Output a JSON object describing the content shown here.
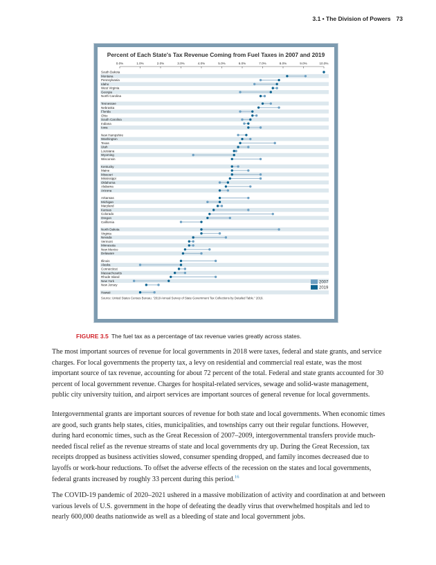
{
  "header": {
    "section": "3.1 • The Division of Powers",
    "page_number": "73"
  },
  "figure": {
    "caption_label": "FIGURE 3.5",
    "caption_text": "The fuel tax as a percentage of tax revenue varies greatly across states."
  },
  "colors": {
    "y2007": "#6c9fc2",
    "y2019": "#0d6390",
    "band": "#dde8ee",
    "connector": "#9fbcd1"
  },
  "chart_data": {
    "type": "dot_plot",
    "title": "Percent of Each State's Tax Revenue Coming from Fuel Taxes in 2007 and 2019",
    "x_ticks": [
      "0.0%",
      "1.0%",
      "2.0%",
      "3.0%",
      "4.0%",
      "5.0%",
      "6.0%",
      "7.0%",
      "8.0%",
      "9.0%",
      "10.0%"
    ],
    "xlim": [
      0,
      10
    ],
    "legend": {
      "entries": [
        "2007",
        "2019"
      ],
      "placement": "bottom-right"
    },
    "source": "Source: United States Census Bureau. \"2019 Annual Survey of State Government Tax Collections by Detailed Table.\" 2019.",
    "states": [
      {
        "name": "South Dakota",
        "v2007": 10.0,
        "v2019": 10.0
      },
      {
        "name": "Montana",
        "v2007": 9.1,
        "v2019": 8.2
      },
      {
        "name": "Pennsylvania",
        "v2007": 6.9,
        "v2019": 7.8
      },
      {
        "name": "Idaho",
        "v2007": 6.6,
        "v2019": 7.7
      },
      {
        "name": "West Virginia",
        "v2007": 7.7,
        "v2019": 7.5
      },
      {
        "name": "Georgia",
        "v2007": 5.9,
        "v2019": 7.4
      },
      {
        "name": "North Carolina",
        "v2007": 7.1,
        "v2019": 6.9
      },
      {
        "name": "Tennessee",
        "v2007": 7.4,
        "v2019": 7.0
      },
      {
        "name": "Nebraska",
        "v2007": 7.8,
        "v2019": 6.8
      },
      {
        "name": "Florida",
        "v2007": 5.9,
        "v2019": 6.5
      },
      {
        "name": "Ohio",
        "v2007": 6.7,
        "v2019": 6.5
      },
      {
        "name": "South Carolina",
        "v2007": 6.0,
        "v2019": 6.4
      },
      {
        "name": "Indiana",
        "v2007": 6.1,
        "v2019": 6.3
      },
      {
        "name": "Iowa",
        "v2007": 6.9,
        "v2019": 6.3
      },
      {
        "name": "New Hampshire",
        "v2007": 5.8,
        "v2019": 6.2
      },
      {
        "name": "Washington",
        "v2007": 6.4,
        "v2019": 6.0
      },
      {
        "name": "Texas",
        "v2007": 7.6,
        "v2019": 5.9
      },
      {
        "name": "Utah",
        "v2007": 6.3,
        "v2019": 5.8
      },
      {
        "name": "Louisiana",
        "v2007": 5.7,
        "v2019": 5.6
      },
      {
        "name": "Wyoming",
        "v2007": 3.6,
        "v2019": 5.6
      },
      {
        "name": "Wisconsin",
        "v2007": 6.9,
        "v2019": 5.5
      },
      {
        "name": "Kentucky",
        "v2007": 5.8,
        "v2019": 5.5
      },
      {
        "name": "Maine",
        "v2007": 6.3,
        "v2019": 5.5
      },
      {
        "name": "Missouri",
        "v2007": 6.9,
        "v2019": 5.5
      },
      {
        "name": "Mississippi",
        "v2007": 6.9,
        "v2019": 5.4
      },
      {
        "name": "Oklahoma",
        "v2007": 4.9,
        "v2019": 5.3
      },
      {
        "name": "Alabama",
        "v2007": 6.4,
        "v2019": 5.2
      },
      {
        "name": "Arizona",
        "v2007": 5.3,
        "v2019": 4.9
      },
      {
        "name": "Arkansas",
        "v2007": 6.3,
        "v2019": 4.9
      },
      {
        "name": "Michigan",
        "v2007": 4.3,
        "v2019": 4.9
      },
      {
        "name": "Maryland",
        "v2007": 5.0,
        "v2019": 4.8
      },
      {
        "name": "Kansas",
        "v2007": 6.3,
        "v2019": 4.6
      },
      {
        "name": "Colorado",
        "v2007": 7.5,
        "v2019": 4.4
      },
      {
        "name": "Oregon",
        "v2007": 5.4,
        "v2019": 4.3
      },
      {
        "name": "California",
        "v2007": 3.0,
        "v2019": 4.0
      },
      {
        "name": "North Dakota",
        "v2007": 7.8,
        "v2019": 4.0
      },
      {
        "name": "Virginia",
        "v2007": 4.9,
        "v2019": 4.0
      },
      {
        "name": "Nevada",
        "v2007": 5.2,
        "v2019": 3.6
      },
      {
        "name": "Vermont",
        "v2007": 3.6,
        "v2019": 3.4
      },
      {
        "name": "Minnesota",
        "v2007": 3.6,
        "v2019": 3.4
      },
      {
        "name": "New Mexico",
        "v2007": 4.4,
        "v2019": 3.2
      },
      {
        "name": "Delaware",
        "v2007": 4.0,
        "v2019": 3.1
      },
      {
        "name": "Illinois",
        "v2007": 4.7,
        "v2019": 3.0
      },
      {
        "name": "Alaska",
        "v2007": 1.0,
        "v2019": 3.0
      },
      {
        "name": "Connecticut",
        "v2007": 3.2,
        "v2019": 2.9
      },
      {
        "name": "Massachusetts",
        "v2007": 3.2,
        "v2019": 2.7
      },
      {
        "name": "Rhode Island",
        "v2007": 4.7,
        "v2019": 2.5
      },
      {
        "name": "New York",
        "v2007": 0.7,
        "v2019": 2.4
      },
      {
        "name": "New Jersey",
        "v2007": 1.9,
        "v2019": 1.3
      },
      {
        "name": "Hawaii",
        "v2007": 1.7,
        "v2019": 1.0
      }
    ]
  },
  "paragraphs": {
    "p1": "The most important sources of revenue for local governments in 2018 were taxes, federal and state grants, and service charges. For local governments the property tax, a levy on residential and commercial real estate, was the most important source of tax revenue, accounting for about 72 percent of the total. Federal and state grants accounted for 30 percent of local government revenue. Charges for hospital-related services, sewage and solid-waste management, public city university tuition, and airport services are important sources of general revenue for local governments.",
    "p2": "Intergovernmental grants are important sources of revenue for both state and local governments. When economic times are good, such grants help states, cities, municipalities, and townships carry out their regular functions. However, during hard economic times, such as the Great Recession of 2007–2009, intergovernmental transfers provide much-needed fiscal relief as the revenue streams of state and local governments dry up. During the Great Recession, tax receipts dropped as business activities slowed, consumer spending dropped, and family incomes decreased due to layoffs or work-hour reductions. To offset the adverse effects of the recession on the states and local governments, federal grants increased by roughly 33 percent during this period.",
    "p2_note": "16",
    "p3": "The COVID-19 pandemic of 2020–2021 ushered in a massive mobilization of activity and coordination at and between various levels of U.S. government in the hope of defeating the deadly virus that overwhelmed hospitals and led to nearly 600,000 deaths nationwide as well as a bleeding of state and local government jobs."
  }
}
